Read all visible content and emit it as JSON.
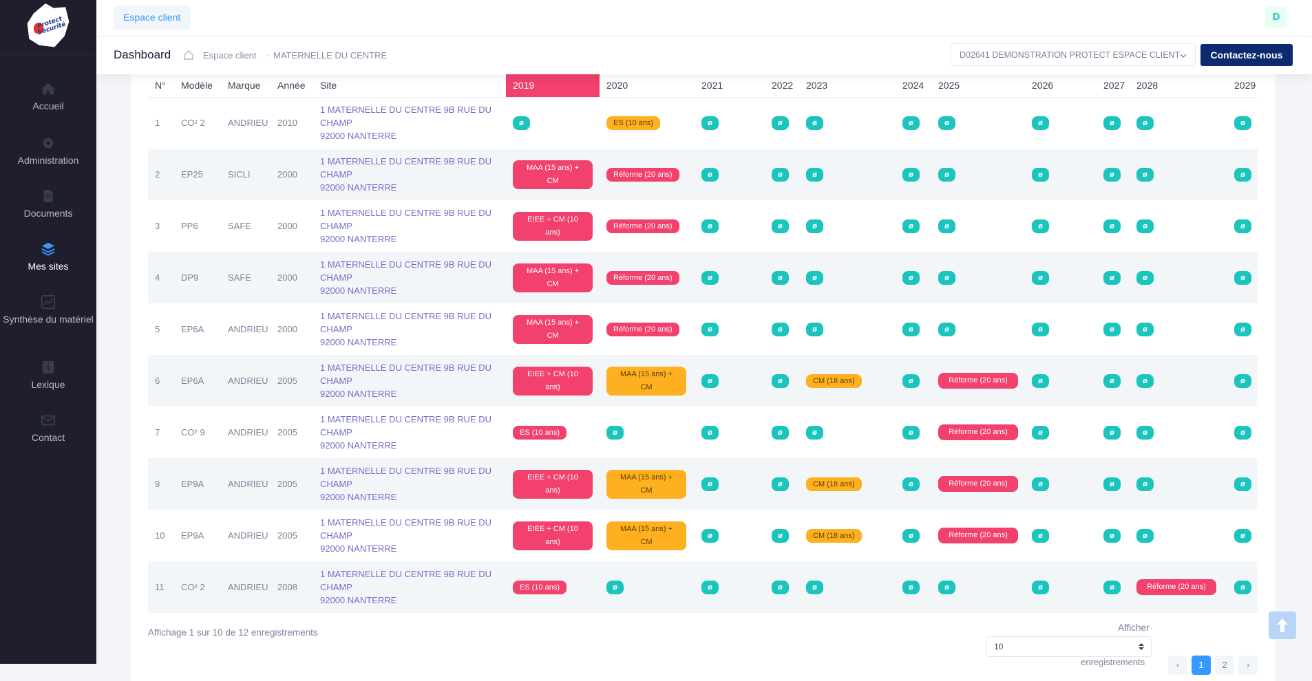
{
  "sidebar": {
    "logo_text": "Protect Sécurité",
    "items": [
      {
        "label": "Accueil",
        "icon": "home-icon"
      },
      {
        "label": "Administration",
        "icon": "gear-icon"
      },
      {
        "label": "Documents",
        "icon": "document-icon"
      },
      {
        "label": "Mes sites",
        "icon": "layers-icon"
      },
      {
        "label": "Synthèse du matériel",
        "icon": "chart-icon"
      },
      {
        "label": "Lexique",
        "icon": "info-icon"
      },
      {
        "label": "Contact",
        "icon": "mail-icon"
      }
    ],
    "active": "Mes sites"
  },
  "topbar": {
    "tab_label": "Espace client",
    "avatar_letter": "D"
  },
  "subheader": {
    "title": "Dashboard",
    "breadcrumb_1": "Espace client",
    "breadcrumb_sep": "-",
    "breadcrumb_2": "MATERNELLE DU CENTRE",
    "client_select": "D02641 DEMONSTRATION PROTECT ESPACE CLIENT",
    "contact_label": "Contactez-nous"
  },
  "table": {
    "headers": [
      "N°",
      "Modèle",
      "Marque",
      "Année",
      "Site",
      "2019",
      "2020",
      "2021",
      "2022",
      "2023",
      "2024",
      "2025",
      "2026",
      "2027",
      "2028",
      "2029"
    ],
    "site_line1": "1 MATERNELLE DU CENTRE 9B RUE DU",
    "site_line2": "CHAMP",
    "site_line3": "92000 NANTERRE",
    "ok_symbol": "ø",
    "rows": [
      {
        "n": "1",
        "modele": "CO² 2",
        "marque": "ANDRIEU",
        "annee": "2010",
        "y2019": {
          "t": "ok"
        },
        "y2020": {
          "t": "yl",
          "label": "ES (10 ans)"
        },
        "y2021": {
          "t": "ok"
        },
        "y2022": {
          "t": "ok"
        },
        "y2023": {
          "t": "ok"
        },
        "y2024": {
          "t": "ok"
        },
        "y2025": {
          "t": "ok"
        },
        "y2026": {
          "t": "ok"
        },
        "y2027": {
          "t": "ok"
        },
        "y2028": {
          "t": "ok"
        },
        "y2029": {
          "t": "ok"
        }
      },
      {
        "n": "2",
        "modele": "EP25",
        "marque": "SICLI",
        "annee": "2000",
        "y2019": {
          "t": "pkw",
          "label": "MAA (15 ans) + CM"
        },
        "y2020": {
          "t": "pk",
          "label": "Réforme (20 ans)"
        },
        "y2021": {
          "t": "ok"
        },
        "y2022": {
          "t": "ok"
        },
        "y2023": {
          "t": "ok"
        },
        "y2024": {
          "t": "ok"
        },
        "y2025": {
          "t": "ok"
        },
        "y2026": {
          "t": "ok"
        },
        "y2027": {
          "t": "ok"
        },
        "y2028": {
          "t": "ok"
        },
        "y2029": {
          "t": "ok"
        }
      },
      {
        "n": "3",
        "modele": "PP6",
        "marque": "SAFE",
        "annee": "2000",
        "y2019": {
          "t": "pkw",
          "label": "EIEE + CM (10 ans)"
        },
        "y2020": {
          "t": "pk",
          "label": "Réforme (20 ans)"
        },
        "y2021": {
          "t": "ok"
        },
        "y2022": {
          "t": "ok"
        },
        "y2023": {
          "t": "ok"
        },
        "y2024": {
          "t": "ok"
        },
        "y2025": {
          "t": "ok"
        },
        "y2026": {
          "t": "ok"
        },
        "y2027": {
          "t": "ok"
        },
        "y2028": {
          "t": "ok"
        },
        "y2029": {
          "t": "ok"
        }
      },
      {
        "n": "4",
        "modele": "DP9",
        "marque": "SAFE",
        "annee": "2000",
        "y2019": {
          "t": "pkw",
          "label": "MAA (15 ans) + CM"
        },
        "y2020": {
          "t": "pk",
          "label": "Réforme (20 ans)"
        },
        "y2021": {
          "t": "ok"
        },
        "y2022": {
          "t": "ok"
        },
        "y2023": {
          "t": "ok"
        },
        "y2024": {
          "t": "ok"
        },
        "y2025": {
          "t": "ok"
        },
        "y2026": {
          "t": "ok"
        },
        "y2027": {
          "t": "ok"
        },
        "y2028": {
          "t": "ok"
        },
        "y2029": {
          "t": "ok"
        }
      },
      {
        "n": "5",
        "modele": "EP6A",
        "marque": "ANDRIEU",
        "annee": "2000",
        "y2019": {
          "t": "pkw",
          "label": "MAA (15 ans) + CM"
        },
        "y2020": {
          "t": "pk",
          "label": "Réforme (20 ans)"
        },
        "y2021": {
          "t": "ok"
        },
        "y2022": {
          "t": "ok"
        },
        "y2023": {
          "t": "ok"
        },
        "y2024": {
          "t": "ok"
        },
        "y2025": {
          "t": "ok"
        },
        "y2026": {
          "t": "ok"
        },
        "y2027": {
          "t": "ok"
        },
        "y2028": {
          "t": "ok"
        },
        "y2029": {
          "t": "ok"
        }
      },
      {
        "n": "6",
        "modele": "EP6A",
        "marque": "ANDRIEU",
        "annee": "2005",
        "y2019": {
          "t": "pkw",
          "label": "EIEE + CM (10 ans)"
        },
        "y2020": {
          "t": "ylw",
          "label": "MAA (15 ans) + CM"
        },
        "y2021": {
          "t": "ok"
        },
        "y2022": {
          "t": "ok"
        },
        "y2023": {
          "t": "yl",
          "label": "CM (18 ans)"
        },
        "y2024": {
          "t": "ok"
        },
        "y2025": {
          "t": "pkw",
          "label": "Réforme (20 ans)"
        },
        "y2026": {
          "t": "ok"
        },
        "y2027": {
          "t": "ok"
        },
        "y2028": {
          "t": "ok"
        },
        "y2029": {
          "t": "ok"
        }
      },
      {
        "n": "7",
        "modele": "CO² 9",
        "marque": "ANDRIEU",
        "annee": "2005",
        "y2019": {
          "t": "pk",
          "label": "ES (10 ans)"
        },
        "y2020": {
          "t": "ok"
        },
        "y2021": {
          "t": "ok"
        },
        "y2022": {
          "t": "ok"
        },
        "y2023": {
          "t": "ok"
        },
        "y2024": {
          "t": "ok"
        },
        "y2025": {
          "t": "pkw",
          "label": "Réforme (20 ans)"
        },
        "y2026": {
          "t": "ok"
        },
        "y2027": {
          "t": "ok"
        },
        "y2028": {
          "t": "ok"
        },
        "y2029": {
          "t": "ok"
        }
      },
      {
        "n": "9",
        "modele": "EP9A",
        "marque": "ANDRIEU",
        "annee": "2005",
        "y2019": {
          "t": "pkw",
          "label": "EIEE + CM (10 ans)"
        },
        "y2020": {
          "t": "ylw",
          "label": "MAA (15 ans) + CM"
        },
        "y2021": {
          "t": "ok"
        },
        "y2022": {
          "t": "ok"
        },
        "y2023": {
          "t": "yl",
          "label": "CM (18 ans)"
        },
        "y2024": {
          "t": "ok"
        },
        "y2025": {
          "t": "pkw",
          "label": "Réforme (20 ans)"
        },
        "y2026": {
          "t": "ok"
        },
        "y2027": {
          "t": "ok"
        },
        "y2028": {
          "t": "ok"
        },
        "y2029": {
          "t": "ok"
        }
      },
      {
        "n": "10",
        "modele": "EP9A",
        "marque": "ANDRIEU",
        "annee": "2005",
        "y2019": {
          "t": "pkw",
          "label": "EIEE + CM (10 ans)"
        },
        "y2020": {
          "t": "ylw",
          "label": "MAA (15 ans) + CM"
        },
        "y2021": {
          "t": "ok"
        },
        "y2022": {
          "t": "ok"
        },
        "y2023": {
          "t": "yl",
          "label": "CM (18 ans)"
        },
        "y2024": {
          "t": "ok"
        },
        "y2025": {
          "t": "pkw",
          "label": "Réforme (20 ans)"
        },
        "y2026": {
          "t": "ok"
        },
        "y2027": {
          "t": "ok"
        },
        "y2028": {
          "t": "ok"
        },
        "y2029": {
          "t": "ok"
        }
      },
      {
        "n": "11",
        "modele": "CO² 2",
        "marque": "ANDRIEU",
        "annee": "2008",
        "y2019": {
          "t": "pk",
          "label": "ES (10 ans)"
        },
        "y2020": {
          "t": "ok"
        },
        "y2021": {
          "t": "ok"
        },
        "y2022": {
          "t": "ok"
        },
        "y2023": {
          "t": "ok"
        },
        "y2024": {
          "t": "ok"
        },
        "y2025": {
          "t": "ok"
        },
        "y2026": {
          "t": "ok"
        },
        "y2027": {
          "t": "ok"
        },
        "y2028": {
          "t": "pkw",
          "label": "Réforme (20 ans)"
        },
        "y2029": {
          "t": "ok"
        }
      }
    ]
  },
  "footer": {
    "info": "Affichage 1 sur 10 de 12 enregistrements",
    "afficher_label": "Afficher",
    "page_size": "10",
    "enregistrements_label": "enregistrements",
    "pages": [
      "‹",
      "1",
      "2",
      "›"
    ],
    "current_page": "1"
  },
  "colors": {
    "sidebar_bg": "#1e1e2d",
    "accent_blue": "#3699ff",
    "contact_btn": "#0b2a6f",
    "pink": "#f1416c",
    "yellow": "#ffb020",
    "teal": "#1bc5bd",
    "site_link": "#6f6fc7"
  }
}
